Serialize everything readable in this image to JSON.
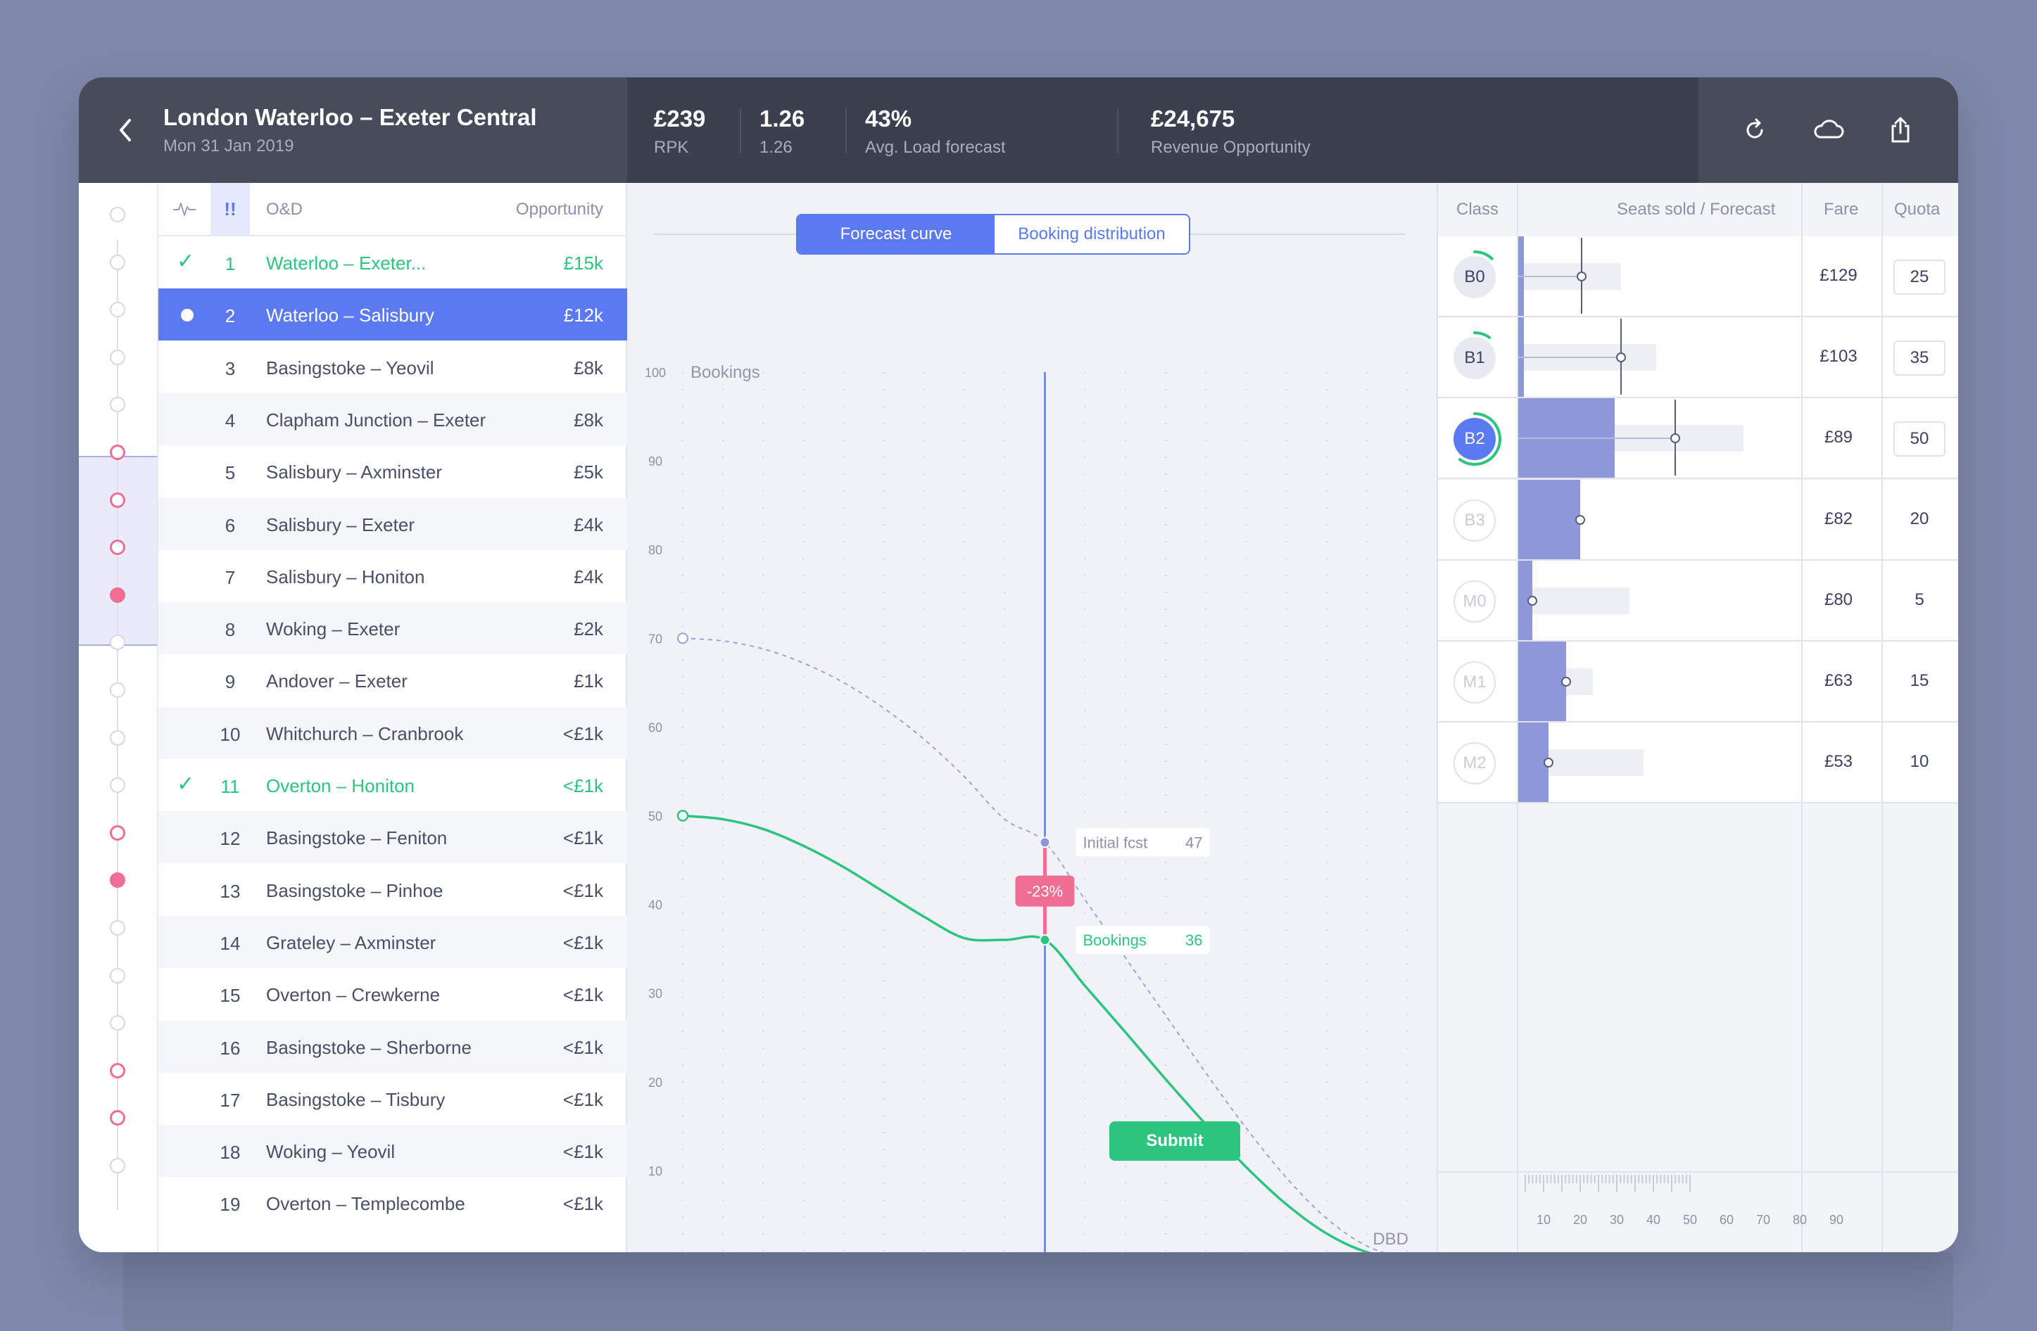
{
  "header": {
    "route_title": "London Waterloo – Exeter Central",
    "date": "Mon 31 Jan 2019",
    "kpis": [
      {
        "value": "£239",
        "label": "RPK"
      },
      {
        "value": "1.26",
        "label": "1.26"
      },
      {
        "value": "43%",
        "label": "Avg. Load forecast"
      },
      {
        "value": "£24,675",
        "label": "Revenue Opportunity"
      }
    ],
    "icons": [
      "back-chevron-icon",
      "refresh-icon",
      "cloud-icon",
      "share-icon"
    ]
  },
  "od_list": {
    "header": {
      "bang": "!!",
      "od": "O&D",
      "opportunity": "Opportunity"
    },
    "rows": [
      {
        "num": "1",
        "name": "Waterloo – Exeter...",
        "opp": "£15k",
        "state": "checked"
      },
      {
        "num": "2",
        "name": "Waterloo – Salisbury",
        "opp": "£12k",
        "state": "selected"
      },
      {
        "num": "3",
        "name": "Basingstoke – Yeovil",
        "opp": "£8k",
        "state": "normal"
      },
      {
        "num": "4",
        "name": "Clapham Junction – Exeter",
        "opp": "£8k",
        "state": "normal"
      },
      {
        "num": "5",
        "name": "Salisbury – Axminster",
        "opp": "£5k",
        "state": "normal"
      },
      {
        "num": "6",
        "name": "Salisbury – Exeter",
        "opp": "£4k",
        "state": "normal"
      },
      {
        "num": "7",
        "name": "Salisbury – Honiton",
        "opp": "£4k",
        "state": "normal"
      },
      {
        "num": "8",
        "name": "Woking – Exeter",
        "opp": "£2k",
        "state": "normal"
      },
      {
        "num": "9",
        "name": "Andover – Exeter",
        "opp": "£1k",
        "state": "normal"
      },
      {
        "num": "10",
        "name": "Whitchurch – Cranbrook",
        "opp": "<£1k",
        "state": "normal"
      },
      {
        "num": "11",
        "name": "Overton – Honiton",
        "opp": "<£1k",
        "state": "checked"
      },
      {
        "num": "12",
        "name": "Basingstoke – Feniton",
        "opp": "<£1k",
        "state": "normal"
      },
      {
        "num": "13",
        "name": "Basingstoke – Pinhoe",
        "opp": "<£1k",
        "state": "normal"
      },
      {
        "num": "14",
        "name": "Grateley – Axminster",
        "opp": "<£1k",
        "state": "normal"
      },
      {
        "num": "15",
        "name": "Overton – Crewkerne",
        "opp": "<£1k",
        "state": "normal"
      },
      {
        "num": "16",
        "name": "Basingstoke – Sherborne",
        "opp": "<£1k",
        "state": "normal"
      },
      {
        "num": "17",
        "name": "Basingstoke – Tisbury",
        "opp": "<£1k",
        "state": "normal"
      },
      {
        "num": "18",
        "name": "Woking – Yeovil",
        "opp": "<£1k",
        "state": "normal"
      },
      {
        "num": "19",
        "name": "Overton – Templecombe",
        "opp": "<£1k",
        "state": "normal"
      }
    ],
    "check_glyph": "✓"
  },
  "rail": {
    "dots": [
      "empty",
      "empty",
      "empty",
      "empty",
      "empty",
      "pink",
      "pink",
      "pink",
      "pink-fill",
      "empty",
      "empty",
      "empty",
      "empty",
      "pink",
      "pink-fill",
      "empty",
      "empty",
      "empty",
      "pink",
      "pink",
      "empty"
    ]
  },
  "chart": {
    "tabs": {
      "active": "Forecast curve",
      "inactive": "Booking distribution"
    },
    "marker": {
      "dbd": 45,
      "label": "45",
      "delta_label": "-23%"
    },
    "callouts": {
      "initial": {
        "label": "Initial fcst",
        "value": "47"
      },
      "bookings": {
        "label": "Bookings",
        "value": "36"
      }
    },
    "colors": {
      "accent": "#5b79f0",
      "bookings": "#2cc47f",
      "forecast": "#9aa3db",
      "delta": "#f06d94"
    }
  },
  "chart_data": {
    "type": "line",
    "ylabel": "Bookings",
    "xlabel": "DBD",
    "xlim": [
      0,
      90
    ],
    "ylim": [
      0,
      100
    ],
    "x_ticks": [
      0,
      10,
      20,
      30,
      40,
      50,
      60,
      70,
      80,
      90
    ],
    "y_ticks": [
      10,
      20,
      30,
      40,
      50,
      60,
      70,
      80,
      90,
      100
    ],
    "series": [
      {
        "style": "dashed",
        "x": [
          0,
          5,
          10,
          15,
          20,
          25,
          30,
          35,
          40,
          45,
          50,
          55,
          60,
          65,
          70,
          75,
          80,
          85,
          90
        ],
        "y": [
          70,
          69.7,
          68.8,
          67.2,
          65,
          62.1,
          58.6,
          54.4,
          49.6,
          47,
          40.5,
          34,
          27.5,
          21,
          14.8,
          9.2,
          4.6,
          1.5,
          0
        ]
      },
      {
        "style": "solid",
        "x": [
          0,
          5,
          10,
          15,
          20,
          25,
          30,
          35,
          40,
          45,
          50,
          55,
          60,
          65,
          70,
          75,
          80,
          85,
          90
        ],
        "y": [
          50,
          49.6,
          48.5,
          46.6,
          44.2,
          41.4,
          38.6,
          36.2,
          36.0,
          36,
          30.8,
          25.6,
          20.3,
          15.2,
          10.4,
          6.2,
          2.9,
          0.8,
          0
        ]
      }
    ],
    "markers": [
      {
        "name": "Initial fcst",
        "x": 45,
        "y": 47
      },
      {
        "name": "Bookings",
        "x": 45,
        "y": 36
      }
    ],
    "grid": "dotted"
  },
  "class_panel": {
    "headers": {
      "class": "Class",
      "seats": "Seats sold / Forecast",
      "fare": "Fare",
      "quota": "Quota"
    },
    "rows": [
      {
        "class": "B0",
        "fare": "£129",
        "quota": "25",
        "style": "dark",
        "editable": true,
        "sold": 0.3,
        "forecast": 4,
        "fcst_max": 6.5,
        "progress": 0.12
      },
      {
        "class": "B1",
        "fare": "£103",
        "quota": "35",
        "style": "dark",
        "editable": true,
        "sold": 0.3,
        "forecast": 6.5,
        "fcst_max": 8.7,
        "progress": 0.1
      },
      {
        "class": "B2",
        "fare": "£89",
        "quota": "50",
        "style": "blue",
        "editable": true,
        "sold": 6.1,
        "forecast": 9.9,
        "fcst_max": 14.2,
        "progress": 0.6
      },
      {
        "class": "B3",
        "fare": "£82",
        "quota": "20",
        "style": "faint",
        "editable": false,
        "sold": 3.9,
        "forecast": 3.9,
        "fcst_max": 0,
        "progress": 0
      },
      {
        "class": "M0",
        "fare": "£80",
        "quota": "5",
        "style": "faint",
        "editable": false,
        "sold": 0.9,
        "forecast": 0.9,
        "fcst_max": 7,
        "progress": 0
      },
      {
        "class": "M1",
        "fare": "£63",
        "quota": "15",
        "style": "faint",
        "editable": false,
        "sold": 3,
        "forecast": 3,
        "fcst_max": 4.7,
        "progress": 0
      },
      {
        "class": "M2",
        "fare": "£53",
        "quota": "10",
        "style": "faint",
        "editable": false,
        "sold": 1.9,
        "forecast": 1.9,
        "fcst_max": 7.9,
        "progress": 0
      }
    ],
    "axis_ticks": [
      "10",
      "20",
      "30",
      "40",
      "50",
      "60",
      "70",
      "80",
      "90"
    ],
    "submit_label": "Submit"
  }
}
